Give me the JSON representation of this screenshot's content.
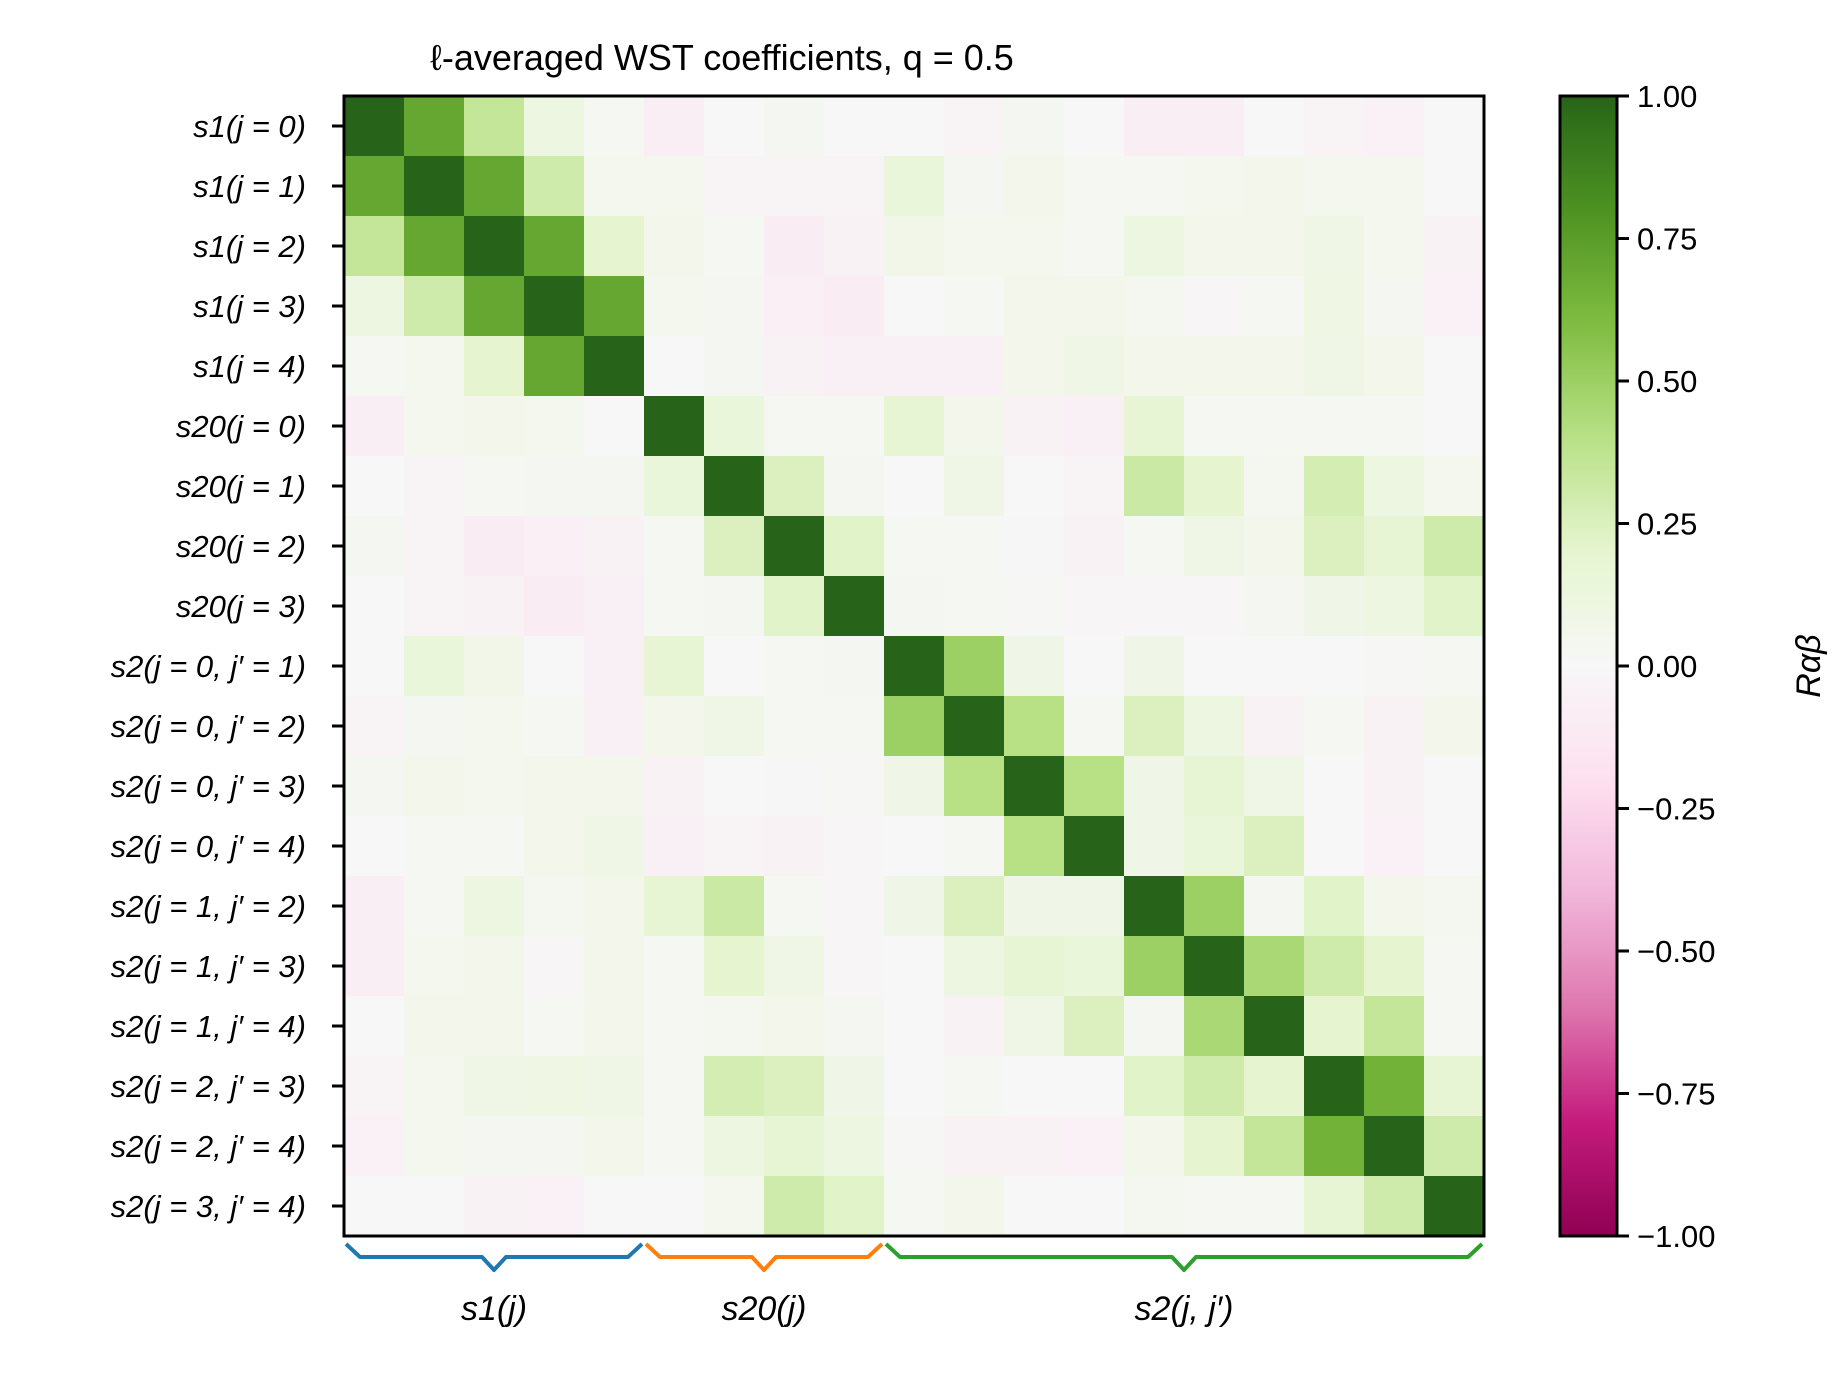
{
  "chart_data": {
    "type": "heatmap",
    "title": "ℓ-averaged WST coefficients, q = 0.5",
    "labels": [
      "s1(j = 0)",
      "s1(j = 1)",
      "s1(j = 2)",
      "s1(j = 3)",
      "s1(j = 4)",
      "s20(j = 0)",
      "s20(j = 1)",
      "s20(j = 2)",
      "s20(j = 3)",
      "s2(j = 0, j′ = 1)",
      "s2(j = 0, j′ = 2)",
      "s2(j = 0, j′ = 3)",
      "s2(j = 0, j′ = 4)",
      "s2(j = 1, j′ = 2)",
      "s2(j = 1, j′ = 3)",
      "s2(j = 1, j′ = 4)",
      "s2(j = 2, j′ = 3)",
      "s2(j = 2, j′ = 4)",
      "s2(j = 3, j′ = 4)"
    ],
    "matrix": [
      [
        1.0,
        0.7,
        0.35,
        0.12,
        0.02,
        -0.08,
        0.0,
        0.03,
        0.0,
        0.0,
        -0.03,
        0.03,
        0.0,
        -0.08,
        -0.08,
        0.0,
        -0.03,
        -0.05,
        0.0
      ],
      [
        0.7,
        1.0,
        0.7,
        0.3,
        0.05,
        0.05,
        -0.03,
        -0.03,
        -0.03,
        0.15,
        0.03,
        0.06,
        0.02,
        0.02,
        0.05,
        0.06,
        0.05,
        0.05,
        0.0
      ],
      [
        0.35,
        0.7,
        1.0,
        0.7,
        0.2,
        0.06,
        0.02,
        -0.1,
        -0.04,
        0.07,
        0.05,
        0.05,
        0.02,
        0.12,
        0.06,
        0.06,
        0.09,
        0.05,
        -0.04
      ],
      [
        0.12,
        0.3,
        0.7,
        1.0,
        0.7,
        0.05,
        0.03,
        -0.07,
        -0.1,
        0.0,
        0.02,
        0.06,
        0.06,
        0.04,
        -0.02,
        0.02,
        0.1,
        0.03,
        -0.05
      ],
      [
        0.02,
        0.05,
        0.2,
        0.7,
        1.0,
        0.0,
        0.03,
        -0.04,
        -0.06,
        -0.06,
        -0.06,
        0.06,
        0.09,
        0.06,
        0.06,
        0.06,
        0.09,
        0.06,
        0.0
      ],
      [
        -0.08,
        0.05,
        0.06,
        0.05,
        0.0,
        1.0,
        0.15,
        0.02,
        0.02,
        0.18,
        0.06,
        -0.04,
        -0.06,
        0.18,
        0.02,
        0.02,
        0.02,
        0.02,
        0.0
      ],
      [
        0.0,
        -0.03,
        0.02,
        0.03,
        0.03,
        0.15,
        1.0,
        0.25,
        0.03,
        0.0,
        0.09,
        0.0,
        -0.03,
        0.32,
        0.2,
        0.04,
        0.28,
        0.12,
        0.05
      ],
      [
        0.03,
        -0.03,
        -0.1,
        -0.07,
        -0.04,
        0.02,
        0.25,
        1.0,
        0.22,
        0.02,
        0.02,
        -0.01,
        -0.04,
        0.02,
        0.09,
        0.06,
        0.25,
        0.18,
        0.3
      ],
      [
        0.0,
        -0.03,
        -0.04,
        -0.1,
        -0.06,
        0.02,
        0.03,
        0.22,
        1.0,
        0.03,
        0.02,
        0.01,
        -0.02,
        -0.02,
        -0.02,
        0.03,
        0.08,
        0.12,
        0.22
      ],
      [
        0.0,
        0.15,
        0.07,
        0.0,
        -0.06,
        0.18,
        0.0,
        0.02,
        0.03,
        1.0,
        0.5,
        0.08,
        0.0,
        0.08,
        0.0,
        0.0,
        0.0,
        0.01,
        0.02
      ],
      [
        -0.03,
        0.03,
        0.05,
        0.02,
        -0.06,
        0.06,
        0.09,
        0.02,
        0.02,
        0.5,
        1.0,
        0.4,
        0.02,
        0.25,
        0.12,
        -0.04,
        0.02,
        -0.04,
        0.06
      ],
      [
        0.03,
        0.06,
        0.05,
        0.06,
        0.06,
        -0.04,
        0.0,
        -0.01,
        0.01,
        0.08,
        0.4,
        1.0,
        0.4,
        0.08,
        0.18,
        0.09,
        0.0,
        -0.04,
        0.0
      ],
      [
        0.0,
        0.02,
        0.02,
        0.06,
        0.09,
        -0.06,
        -0.03,
        -0.04,
        -0.02,
        0.0,
        0.02,
        0.4,
        1.0,
        0.08,
        0.15,
        0.25,
        0.0,
        -0.05,
        0.0
      ],
      [
        -0.08,
        0.02,
        0.12,
        0.04,
        0.06,
        0.18,
        0.32,
        0.02,
        -0.02,
        0.08,
        0.25,
        0.08,
        0.08,
        1.0,
        0.5,
        0.03,
        0.22,
        0.06,
        0.04
      ],
      [
        -0.08,
        0.05,
        0.06,
        -0.02,
        0.06,
        0.02,
        0.2,
        0.09,
        -0.02,
        0.0,
        0.12,
        0.18,
        0.15,
        0.5,
        1.0,
        0.45,
        0.3,
        0.2,
        0.02
      ],
      [
        0.0,
        0.06,
        0.06,
        0.02,
        0.06,
        0.02,
        0.04,
        0.06,
        0.03,
        0.0,
        -0.04,
        0.09,
        0.25,
        0.03,
        0.45,
        1.0,
        0.2,
        0.35,
        0.02
      ],
      [
        -0.03,
        0.05,
        0.09,
        0.1,
        0.09,
        0.02,
        0.28,
        0.25,
        0.08,
        0.0,
        0.02,
        0.0,
        0.0,
        0.22,
        0.3,
        0.2,
        1.0,
        0.65,
        0.18
      ],
      [
        -0.05,
        0.05,
        0.03,
        0.03,
        0.06,
        0.02,
        0.12,
        0.18,
        0.12,
        0.01,
        -0.04,
        -0.04,
        -0.05,
        0.06,
        0.2,
        0.35,
        0.65,
        1.0,
        0.3
      ],
      [
        0.0,
        0.0,
        -0.04,
        -0.05,
        0.0,
        0.0,
        0.05,
        0.3,
        0.22,
        0.02,
        0.06,
        0.0,
        0.0,
        0.04,
        0.02,
        0.02,
        0.18,
        0.3,
        1.0
      ]
    ],
    "colorbar": {
      "label": "Rαβ",
      "range": [
        -1.0,
        1.0
      ],
      "ticks": [
        "1.00",
        "0.75",
        "0.50",
        "0.25",
        "0.00",
        "−0.25",
        "−0.50",
        "−0.75",
        "−1.00"
      ],
      "tick_values": [
        1.0,
        0.75,
        0.5,
        0.25,
        0.0,
        -0.25,
        -0.5,
        -0.75,
        -1.0
      ],
      "colormap": "PiYG"
    },
    "groups": [
      {
        "label": "s1(j)",
        "start": 0,
        "end": 5,
        "color": "#1f77b4"
      },
      {
        "label": "s20(j)",
        "start": 5,
        "end": 9,
        "color": "#ff7f0e"
      },
      {
        "label": "s2(j, j′)",
        "start": 9,
        "end": 19,
        "color": "#2ca02c"
      }
    ]
  }
}
